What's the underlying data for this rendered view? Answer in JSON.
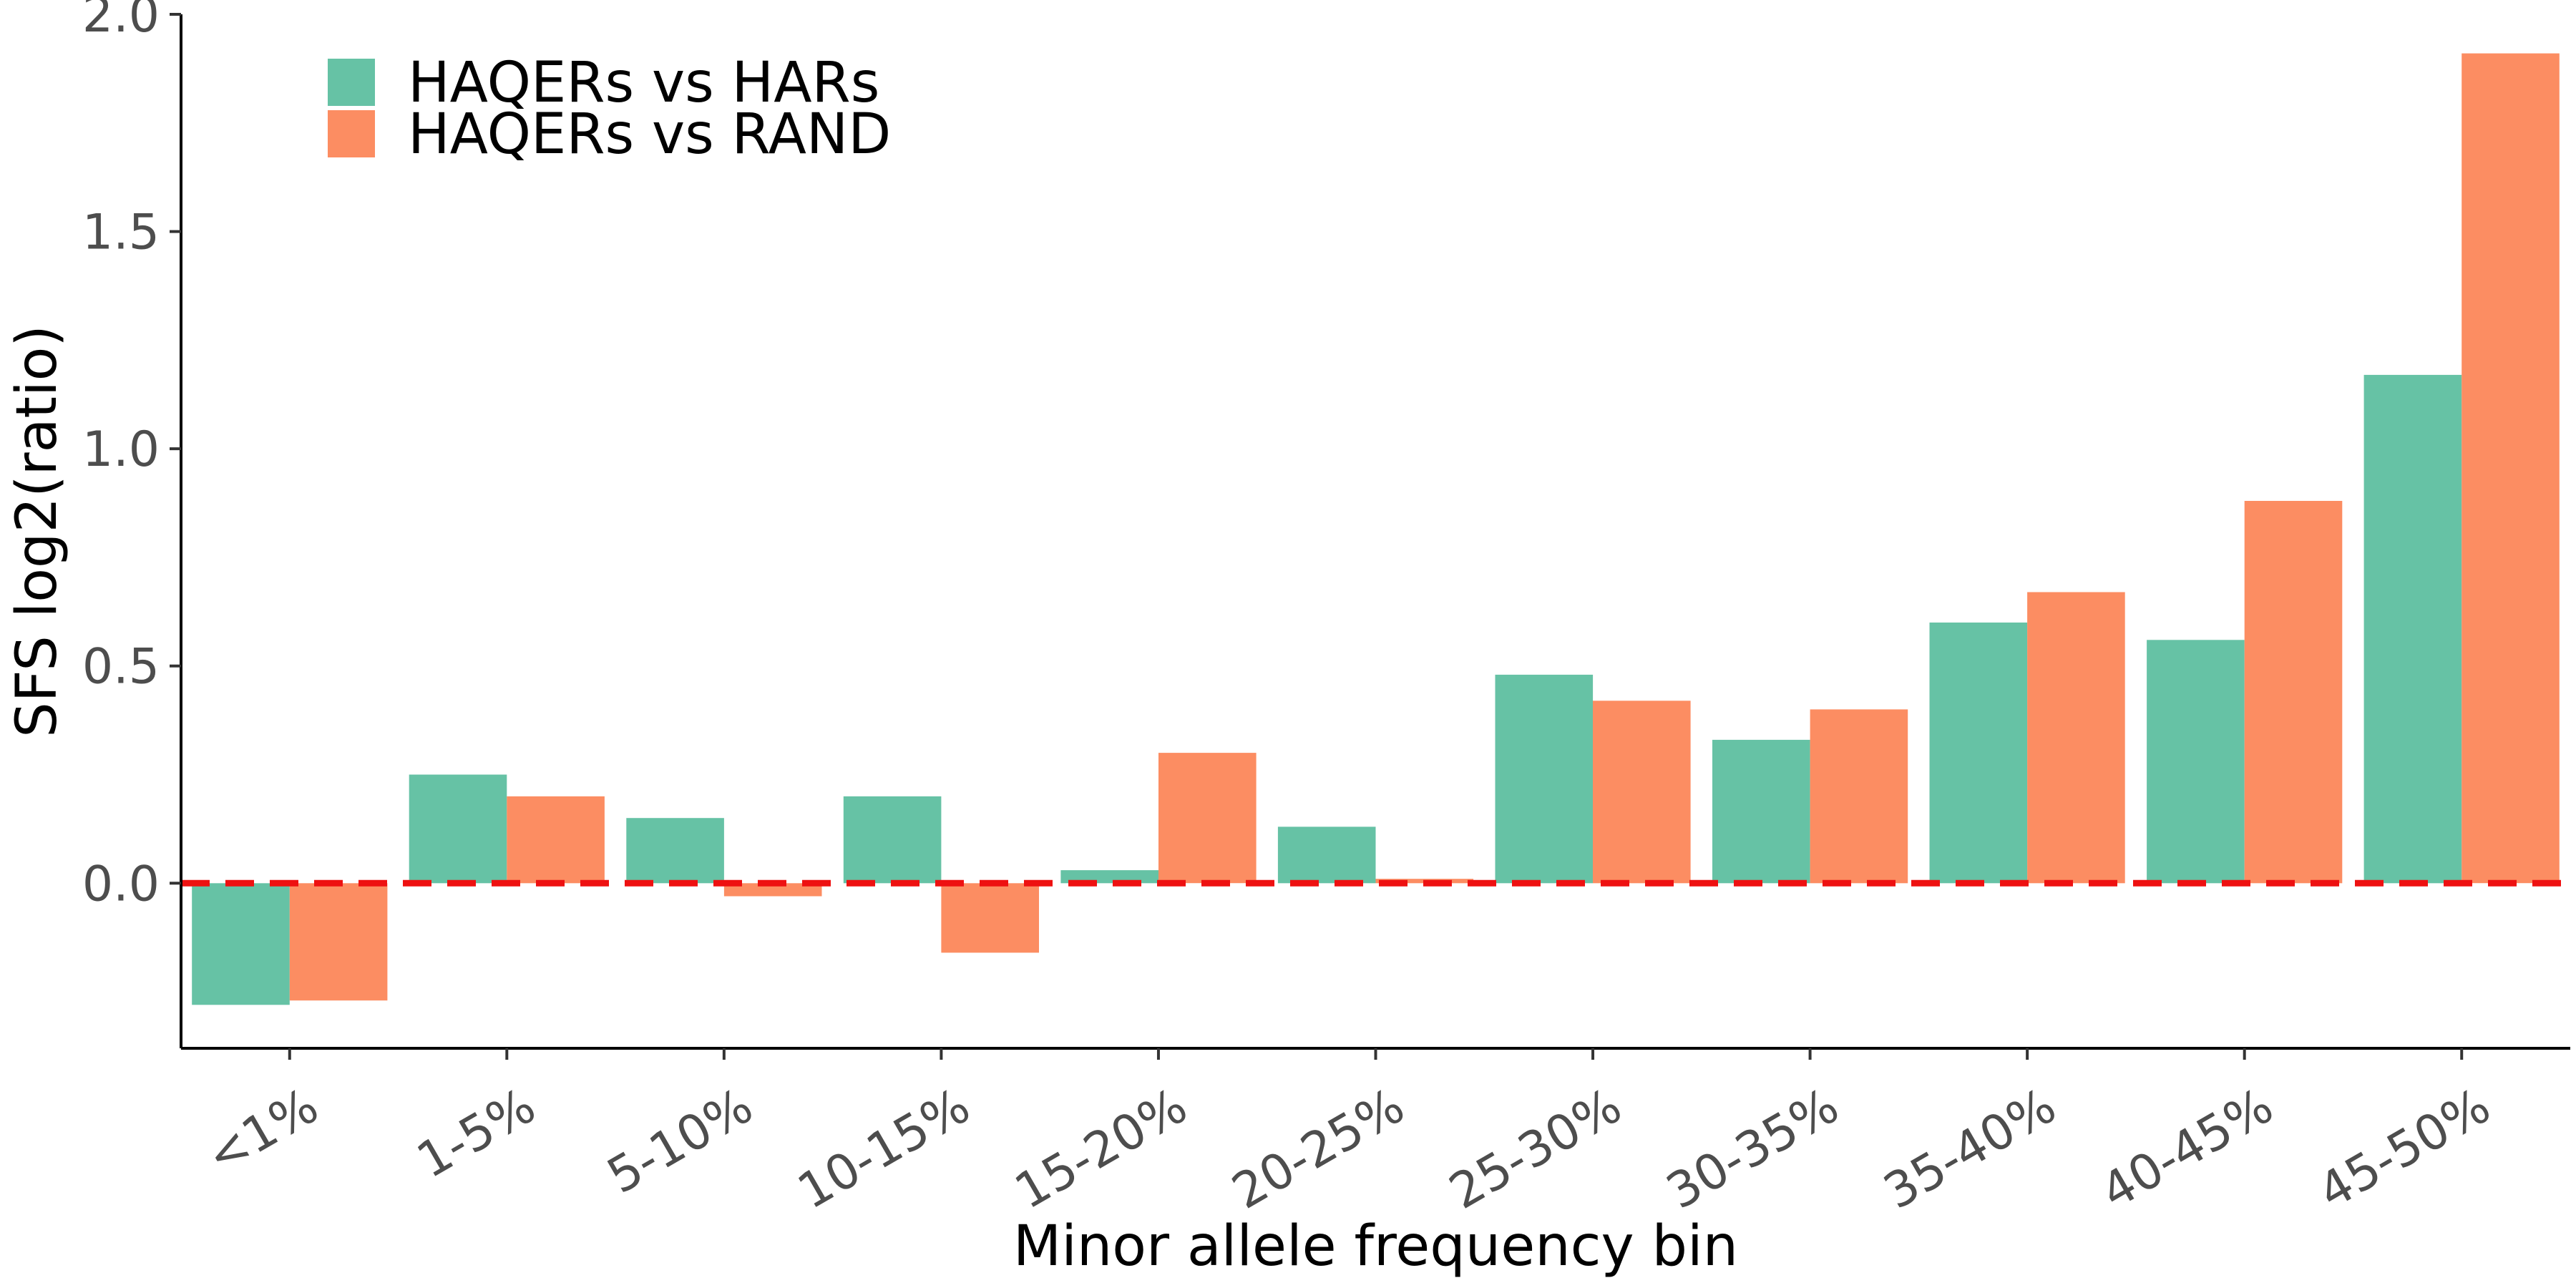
{
  "chart_data": {
    "type": "bar",
    "title": "",
    "xlabel": "Minor allele frequency bin",
    "ylabel": "SFS log2(ratio)",
    "categories": [
      "<1%",
      "1-5%",
      "5-10%",
      "10-15%",
      "15-20%",
      "20-25%",
      "25-30%",
      "30-35%",
      "35-40%",
      "40-45%",
      "45-50%"
    ],
    "series": [
      {
        "name": "HAQERs vs HARs",
        "color": "#66c2a5",
        "values": [
          -0.28,
          0.25,
          0.15,
          0.2,
          0.03,
          0.13,
          0.48,
          0.33,
          0.6,
          0.56,
          1.17
        ]
      },
      {
        "name": "HAQERs vs RAND",
        "color": "#fc8d62",
        "values": [
          -0.27,
          0.2,
          -0.03,
          -0.16,
          0.3,
          0.01,
          0.42,
          0.4,
          0.67,
          0.88,
          1.91
        ]
      }
    ],
    "ylim": [
      -0.38,
      2.0
    ],
    "yticks": [
      0.0,
      0.5,
      1.0,
      1.5,
      2.0
    ],
    "ytick_labels": [
      "0.0",
      "0.5",
      "1.0",
      "1.5",
      "2.0"
    ],
    "grid": false,
    "legend_position": "top-left",
    "reference_line": {
      "y": 0,
      "style": "dashed",
      "color": "#ee1111"
    }
  }
}
